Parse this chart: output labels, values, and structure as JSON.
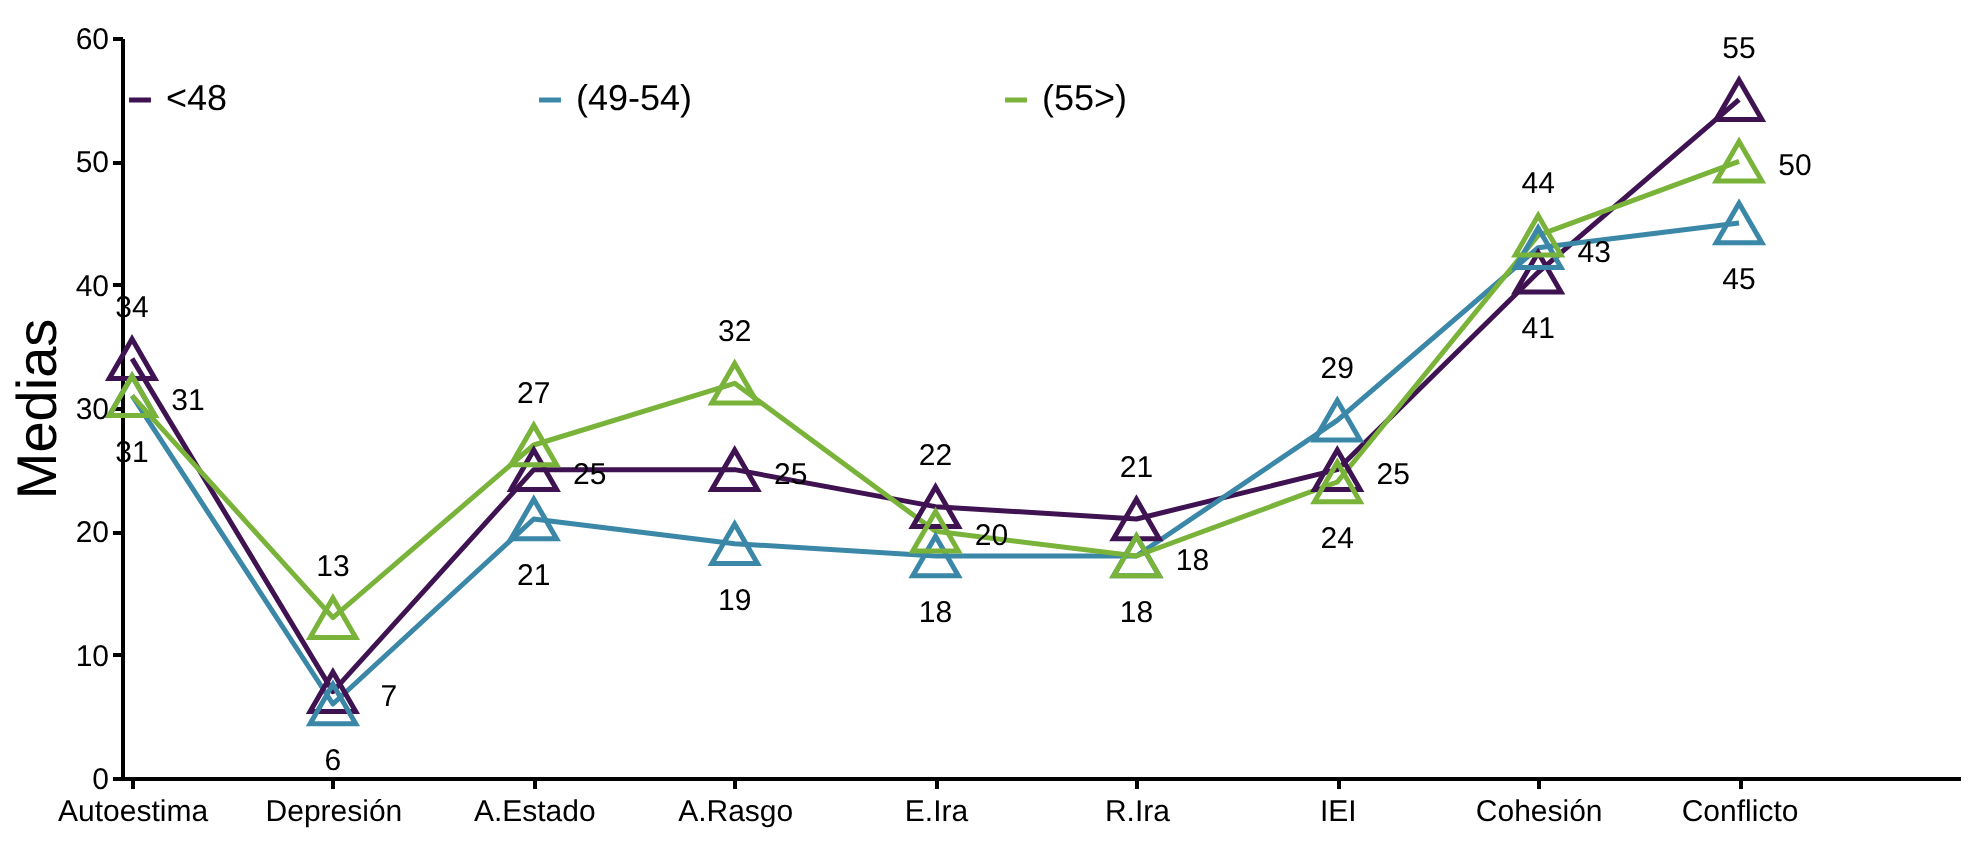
{
  "chart_data": {
    "type": "line",
    "ylabel": "Medias",
    "categories": [
      "Autoestima",
      "Depresión",
      "A.Estado",
      "A.Rasgo",
      "E.Ira",
      "R.Ira",
      "IEI",
      "Cohesión",
      "Conflicto"
    ],
    "series": [
      {
        "name": "<48",
        "color": "#3f1251",
        "values": [
          34,
          7,
          25,
          25,
          22,
          21,
          25,
          41,
          55
        ]
      },
      {
        "name": "(49-54)",
        "color": "#3a87a8",
        "values": [
          31,
          6,
          21,
          19,
          18,
          18,
          29,
          43,
          45
        ]
      },
      {
        "name": "(55>)",
        "color": "#7ab33a",
        "values": [
          31,
          13,
          27,
          32,
          20,
          18,
          24,
          44,
          50
        ]
      }
    ],
    "ylim": [
      0,
      60
    ],
    "yticks": [
      0,
      10,
      20,
      30,
      40,
      50,
      60
    ],
    "grid": false,
    "legend": "top",
    "marker": "triangle",
    "line_style": "solid",
    "data_labels": true
  }
}
